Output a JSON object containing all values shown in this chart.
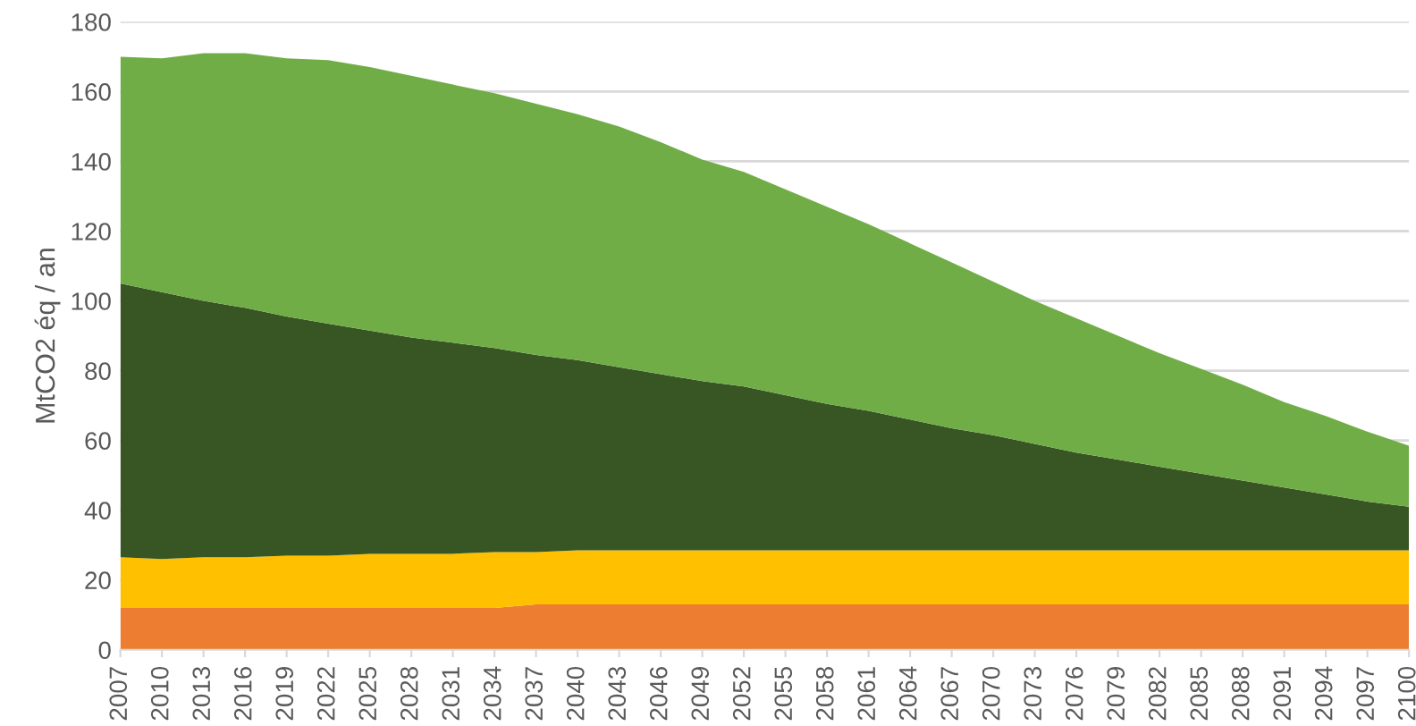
{
  "chart_data": {
    "type": "area",
    "stacked": true,
    "ylabel": "MtCO2 éq / an",
    "x": [
      2007,
      2010,
      2013,
      2016,
      2019,
      2022,
      2025,
      2028,
      2031,
      2034,
      2037,
      2040,
      2043,
      2046,
      2049,
      2052,
      2055,
      2058,
      2061,
      2064,
      2067,
      2070,
      2073,
      2076,
      2079,
      2082,
      2085,
      2088,
      2091,
      2094,
      2097,
      2100
    ],
    "series": [
      {
        "color": "#ed7d31",
        "values": [
          12,
          12,
          12,
          12,
          12,
          12,
          12,
          12,
          12,
          12,
          13,
          13,
          13,
          13,
          13,
          13,
          13,
          13,
          13,
          13,
          13,
          13,
          13,
          13,
          13,
          13,
          13,
          13,
          13,
          13,
          13,
          13
        ]
      },
      {
        "color": "#ffc000",
        "values": [
          14.5,
          14,
          14.5,
          14.5,
          15,
          15,
          15.5,
          15.5,
          15.5,
          16,
          15,
          15.5,
          15.5,
          15.5,
          15.5,
          15.5,
          15.5,
          15.5,
          15.5,
          15.5,
          15.5,
          15.5,
          15.5,
          15.5,
          15.5,
          15.5,
          15.5,
          15.5,
          15.5,
          15.5,
          15.5,
          15.5
        ]
      },
      {
        "color": "#375623",
        "values": [
          78.5,
          76.5,
          73.5,
          71.5,
          68.5,
          66.5,
          64,
          62,
          60.5,
          58.5,
          56.5,
          54.5,
          52.5,
          50.5,
          48.5,
          47,
          44.5,
          42,
          40,
          37.5,
          35,
          33,
          30.5,
          28,
          26,
          24,
          22,
          20,
          18,
          16,
          14,
          12.5
        ]
      },
      {
        "color": "#70ad47",
        "values": [
          65,
          67,
          71,
          73,
          74,
          75.5,
          75.5,
          75,
          74,
          73,
          72,
          70.5,
          69,
          66.5,
          63.5,
          61.5,
          59,
          56.5,
          53.5,
          50.5,
          47.5,
          44,
          41,
          38.5,
          35.5,
          32.5,
          30,
          27.5,
          24.5,
          22.5,
          20,
          17.5
        ]
      }
    ],
    "xlim": [
      2007,
      2100
    ],
    "xticks": [
      2007,
      2010,
      2013,
      2016,
      2019,
      2022,
      2025,
      2028,
      2031,
      2034,
      2037,
      2040,
      2043,
      2046,
      2049,
      2052,
      2055,
      2058,
      2061,
      2064,
      2067,
      2070,
      2073,
      2076,
      2079,
      2082,
      2085,
      2088,
      2091,
      2094,
      2097,
      2100
    ],
    "ylim": [
      0,
      180
    ],
    "yticks": [
      0,
      20,
      40,
      60,
      80,
      100,
      120,
      140,
      160,
      180
    ],
    "grid": "y"
  }
}
